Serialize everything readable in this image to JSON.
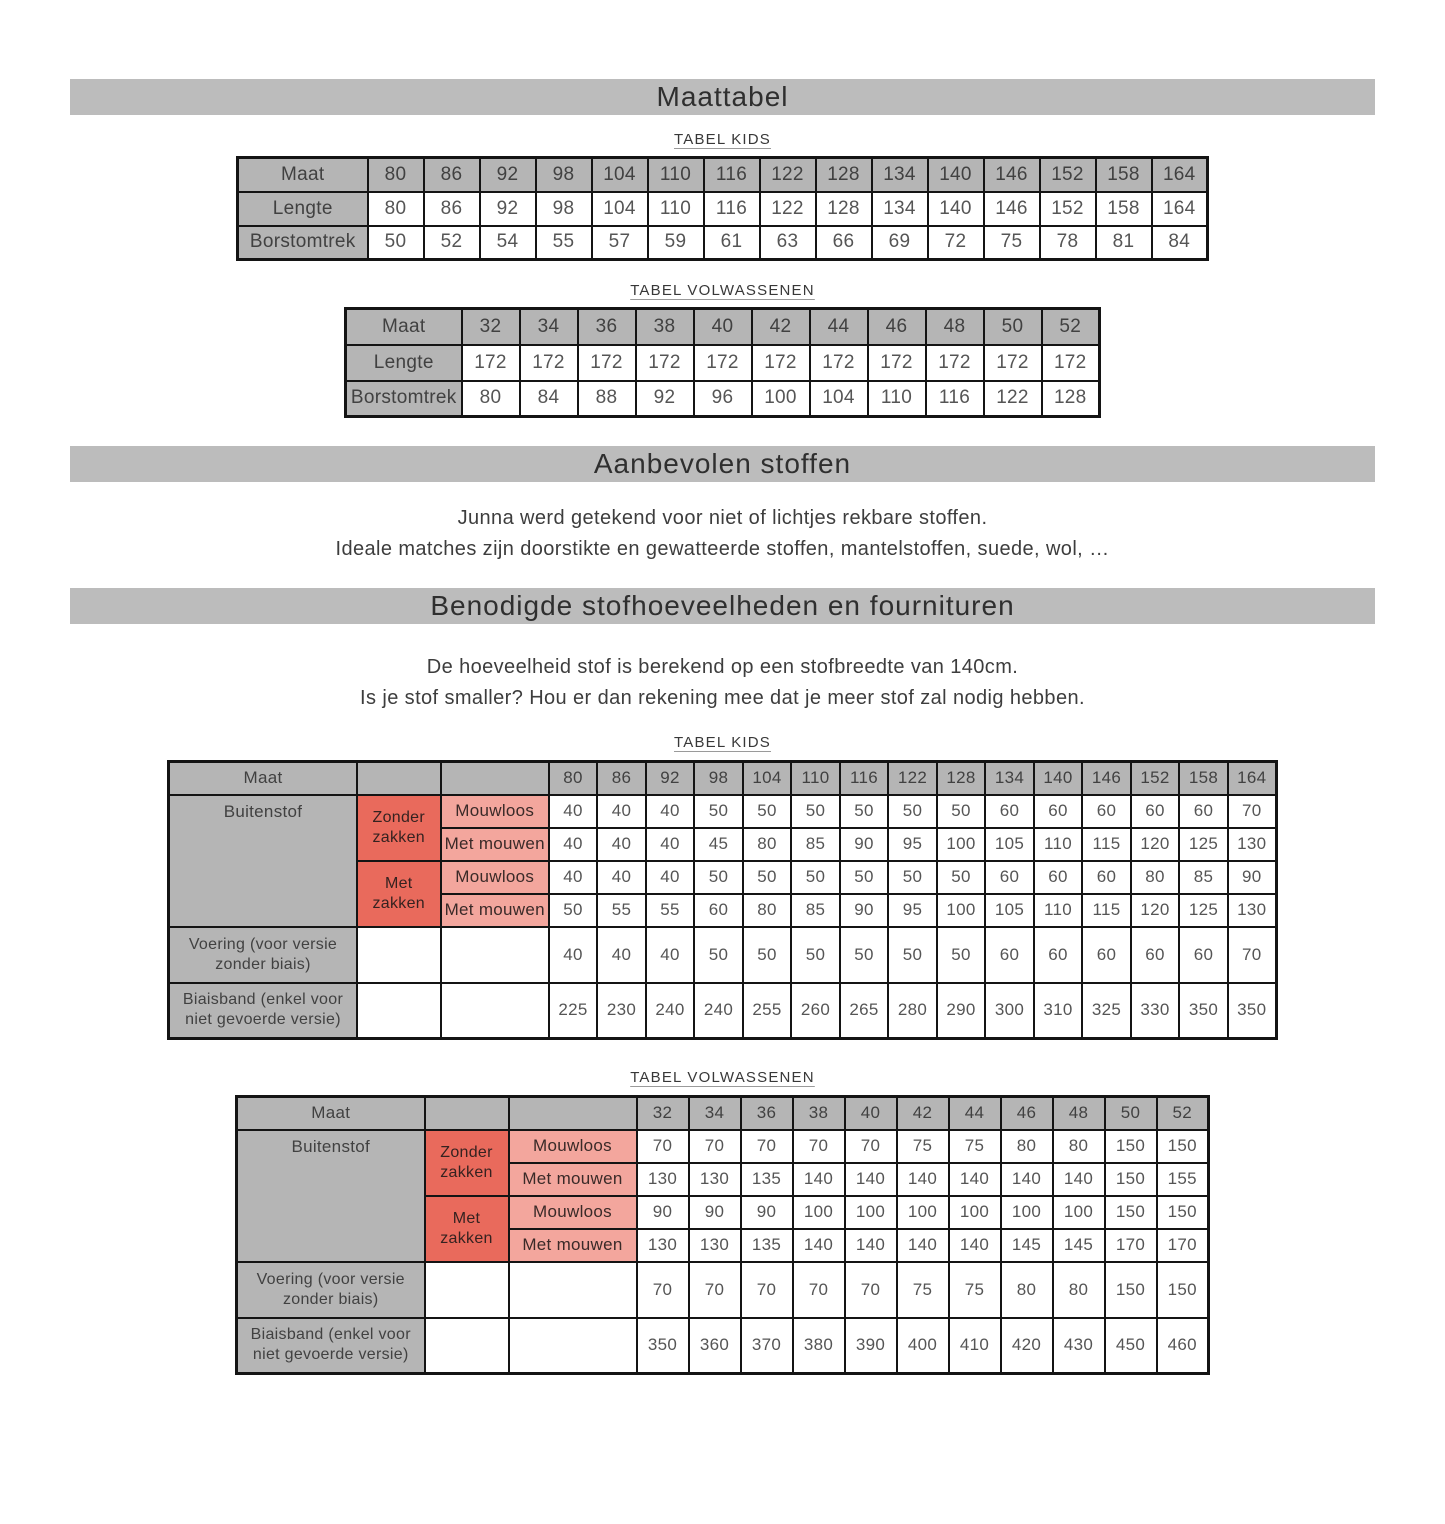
{
  "header": {
    "title": "Maattabel"
  },
  "size_tables": {
    "kids": {
      "caption": "TABEL KIDS",
      "rows": [
        {
          "label": "Maat",
          "values": [
            "80",
            "86",
            "92",
            "98",
            "104",
            "110",
            "116",
            "122",
            "128",
            "134",
            "140",
            "146",
            "152",
            "158",
            "164"
          ]
        },
        {
          "label": "Lengte",
          "values": [
            "80",
            "86",
            "92",
            "98",
            "104",
            "110",
            "116",
            "122",
            "128",
            "134",
            "140",
            "146",
            "152",
            "158",
            "164"
          ]
        },
        {
          "label": "Borstomtrek",
          "values": [
            "50",
            "52",
            "54",
            "55",
            "57",
            "59",
            "61",
            "63",
            "66",
            "69",
            "72",
            "75",
            "78",
            "81",
            "84"
          ]
        }
      ]
    },
    "adults": {
      "caption": "TABEL VOLWASSENEN",
      "rows": [
        {
          "label": "Maat",
          "values": [
            "32",
            "34",
            "36",
            "38",
            "40",
            "42",
            "44",
            "46",
            "48",
            "50",
            "52"
          ]
        },
        {
          "label": "Lengte",
          "values": [
            "172",
            "172",
            "172",
            "172",
            "172",
            "172",
            "172",
            "172",
            "172",
            "172",
            "172"
          ]
        },
        {
          "label": "Borstomtrek",
          "values": [
            "80",
            "84",
            "88",
            "92",
            "96",
            "100",
            "104",
            "110",
            "116",
            "122",
            "128"
          ]
        }
      ]
    }
  },
  "fabrics_section": {
    "heading": "Aanbevolen stoffen",
    "lines": [
      "Junna werd getekend voor niet of lichtjes rekbare stoffen.",
      "Ideale matches zijn doorstikte en gewatteerde stoffen, mantelstoffen, suede, wol, …"
    ]
  },
  "requirements_section": {
    "heading": "Benodigde stofhoeveelheden en fournituren",
    "lines": [
      "De hoeveelheid stof is berekend op een stofbreedte van 140cm.",
      "Is je stof smaller? Hou er dan rekening mee dat je meer stof zal nodig hebben."
    ],
    "kids": {
      "caption": "TABEL KIDS",
      "corner_label": "Maat",
      "sizes": [
        "80",
        "86",
        "92",
        "98",
        "104",
        "110",
        "116",
        "122",
        "128",
        "134",
        "140",
        "146",
        "152",
        "158",
        "164"
      ],
      "outer_label": "Buitenstof",
      "groups": [
        {
          "label": "Zonder zakken",
          "rows": [
            {
              "label": "Mouwloos",
              "values": [
                "40",
                "40",
                "40",
                "50",
                "50",
                "50",
                "50",
                "50",
                "50",
                "60",
                "60",
                "60",
                "60",
                "60",
                "70"
              ]
            },
            {
              "label": "Met mouwen",
              "values": [
                "40",
                "40",
                "40",
                "45",
                "80",
                "85",
                "90",
                "95",
                "100",
                "105",
                "110",
                "115",
                "120",
                "125",
                "130"
              ]
            }
          ]
        },
        {
          "label": "Met zakken",
          "rows": [
            {
              "label": "Mouwloos",
              "values": [
                "40",
                "40",
                "40",
                "50",
                "50",
                "50",
                "50",
                "50",
                "50",
                "60",
                "60",
                "60",
                "80",
                "85",
                "90"
              ]
            },
            {
              "label": "Met mouwen",
              "values": [
                "50",
                "55",
                "55",
                "60",
                "80",
                "85",
                "90",
                "95",
                "100",
                "105",
                "110",
                "115",
                "120",
                "125",
                "130"
              ]
            }
          ]
        }
      ],
      "extra_rows": [
        {
          "label": "Voering (voor versie zonder biais)",
          "values": [
            "40",
            "40",
            "40",
            "50",
            "50",
            "50",
            "50",
            "50",
            "50",
            "60",
            "60",
            "60",
            "60",
            "60",
            "70"
          ]
        },
        {
          "label": "Biaisband (enkel voor niet gevoerde versie)",
          "values": [
            "225",
            "230",
            "240",
            "240",
            "255",
            "260",
            "265",
            "280",
            "290",
            "300",
            "310",
            "325",
            "330",
            "350",
            "350"
          ]
        }
      ]
    },
    "adults": {
      "caption": "TABEL VOLWASSENEN",
      "corner_label": "Maat",
      "sizes": [
        "32",
        "34",
        "36",
        "38",
        "40",
        "42",
        "44",
        "46",
        "48",
        "50",
        "52"
      ],
      "outer_label": "Buitenstof",
      "groups": [
        {
          "label": "Zonder zakken",
          "rows": [
            {
              "label": "Mouwloos",
              "values": [
                "70",
                "70",
                "70",
                "70",
                "70",
                "75",
                "75",
                "80",
                "80",
                "150",
                "150"
              ]
            },
            {
              "label": "Met mouwen",
              "values": [
                "130",
                "130",
                "135",
                "140",
                "140",
                "140",
                "140",
                "140",
                "140",
                "150",
                "155"
              ]
            }
          ]
        },
        {
          "label": "Met zakken",
          "rows": [
            {
              "label": "Mouwloos",
              "values": [
                "90",
                "90",
                "90",
                "100",
                "100",
                "100",
                "100",
                "100",
                "100",
                "150",
                "150"
              ]
            },
            {
              "label": "Met mouwen",
              "values": [
                "130",
                "130",
                "135",
                "140",
                "140",
                "140",
                "140",
                "145",
                "145",
                "170",
                "170"
              ]
            }
          ]
        }
      ],
      "extra_rows": [
        {
          "label": "Voering (voor versie zonder biais)",
          "values": [
            "70",
            "70",
            "70",
            "70",
            "70",
            "75",
            "75",
            "80",
            "80",
            "150",
            "150"
          ]
        },
        {
          "label": "Biaisband (enkel voor niet gevoerde versie)",
          "values": [
            "350",
            "360",
            "370",
            "380",
            "390",
            "400",
            "410",
            "420",
            "430",
            "450",
            "460"
          ]
        }
      ]
    }
  },
  "colors": {
    "bar_gray": "#bcbcbc",
    "cell_gray": "#b5b5b5",
    "group_red": "#e96a5c",
    "variant_pink": "#f3a69d"
  }
}
